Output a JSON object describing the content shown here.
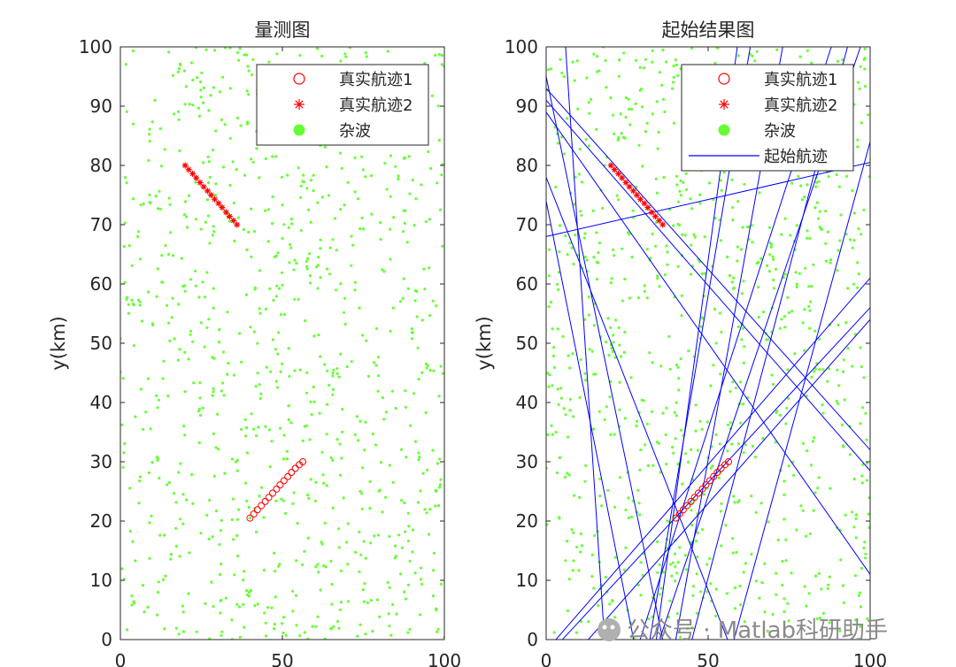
{
  "chart_data": [
    {
      "type": "scatter",
      "title": "量测图",
      "xlabel": "",
      "ylabel": "y(km)",
      "xlim": [
        0,
        100
      ],
      "ylim": [
        0,
        100
      ],
      "xticks": [
        "0",
        "50",
        "100"
      ],
      "yticks": [
        "0",
        "10",
        "20",
        "30",
        "40",
        "50",
        "60",
        "70",
        "80",
        "90",
        "100"
      ],
      "legend_position": "top-right",
      "series": [
        {
          "name": "真实航迹1",
          "marker": "circle",
          "color": "#ff0000",
          "x": [
            40,
            41.2,
            42.3,
            43.5,
            44.7,
            45.8,
            47,
            48.2,
            49.3,
            50.5,
            51.7,
            52.8,
            54,
            55.2,
            56.3
          ],
          "y": [
            20.5,
            21.2,
            21.9,
            22.6,
            23.3,
            24,
            24.7,
            25.4,
            26.1,
            26.8,
            27.5,
            28.2,
            28.9,
            29.5,
            30
          ]
        },
        {
          "name": "真实航迹2",
          "marker": "star",
          "color": "#ff0000",
          "x": [
            20,
            21.1,
            22.3,
            23.4,
            24.6,
            25.7,
            26.9,
            28,
            29.1,
            30.3,
            31.4,
            32.6,
            33.7,
            34.9,
            36
          ],
          "y": [
            80,
            79.3,
            78.6,
            77.9,
            77.1,
            76.4,
            75.7,
            75,
            74.3,
            73.6,
            72.9,
            72.1,
            71.4,
            70.7,
            70
          ]
        },
        {
          "name": "杂波",
          "marker": "dot",
          "color": "#66ff33",
          "n_points": 900,
          "distribution": "uniform over axes"
        }
      ]
    },
    {
      "type": "line",
      "title": "起始结果图",
      "xlabel": "",
      "ylabel": "y(km)",
      "xlim": [
        0,
        100
      ],
      "ylim": [
        0,
        100
      ],
      "xticks": [
        "0",
        "50",
        "100"
      ],
      "yticks": [
        "0",
        "10",
        "20",
        "30",
        "40",
        "50",
        "60",
        "70",
        "80",
        "90",
        "100"
      ],
      "legend_position": "top-right",
      "series": [
        {
          "name": "真实航迹1",
          "marker": "circle",
          "color": "#ff0000",
          "x": [
            40,
            41.2,
            42.3,
            43.5,
            44.7,
            45.8,
            47,
            48.2,
            49.3,
            50.5,
            51.7,
            52.8,
            54,
            55.2,
            56.3
          ],
          "y": [
            20.5,
            21.2,
            21.9,
            22.6,
            23.3,
            24,
            24.7,
            25.4,
            26.1,
            26.8,
            27.5,
            28.2,
            28.9,
            29.5,
            30
          ]
        },
        {
          "name": "真实航迹2",
          "marker": "star",
          "color": "#ff0000",
          "x": [
            20,
            21.1,
            22.3,
            23.4,
            24.6,
            25.7,
            26.9,
            28,
            29.1,
            30.3,
            31.4,
            32.6,
            33.7,
            34.9,
            36
          ],
          "y": [
            80,
            79.3,
            78.6,
            77.9,
            77.1,
            76.4,
            75.7,
            75,
            74.3,
            73.6,
            72.9,
            72.1,
            71.4,
            70.7,
            70
          ]
        },
        {
          "name": "杂波",
          "marker": "dot",
          "color": "#66ff33",
          "n_points": 900,
          "distribution": "uniform over axes"
        },
        {
          "name": "起始航迹",
          "marker": "line",
          "color": "#0000ff",
          "lines": [
            [
              [
                0,
                93
              ],
              [
                100,
                32
              ]
            ],
            [
              [
                0,
                91
              ],
              [
                100,
                28.5
              ]
            ],
            [
              [
                0,
                95
              ],
              [
                36,
                0
              ]
            ],
            [
              [
                0,
                78
              ],
              [
                56,
                0
              ]
            ],
            [
              [
                0,
                74
              ],
              [
                27,
                0
              ]
            ],
            [
              [
                0,
                68
              ],
              [
                100,
                80.5
              ]
            ],
            [
              [
                3,
                0
              ],
              [
                100,
                61
              ]
            ],
            [
              [
                5,
                0
              ],
              [
                100,
                56
              ]
            ],
            [
              [
                13,
                0
              ],
              [
                100,
                54
              ]
            ],
            [
              [
                6,
                100
              ],
              [
                18,
                0
              ]
            ],
            [
              [
                0,
                89
              ],
              [
                100,
                11
              ]
            ],
            [
              [
                32,
                0
              ],
              [
                63,
                100
              ]
            ],
            [
              [
                34,
                0
              ],
              [
                59,
                100
              ]
            ],
            [
              [
                35,
                0
              ],
              [
                97,
                100
              ]
            ],
            [
              [
                45,
                0
              ],
              [
                93,
                100
              ]
            ],
            [
              [
                29,
                0
              ],
              [
                88,
                100
              ]
            ],
            [
              [
                40,
                0
              ],
              [
                73,
                100
              ]
            ],
            [
              [
                58,
                0
              ],
              [
                100,
                84
              ]
            ]
          ]
        }
      ]
    }
  ],
  "watermark": "公众号 · Matlab科研助手"
}
